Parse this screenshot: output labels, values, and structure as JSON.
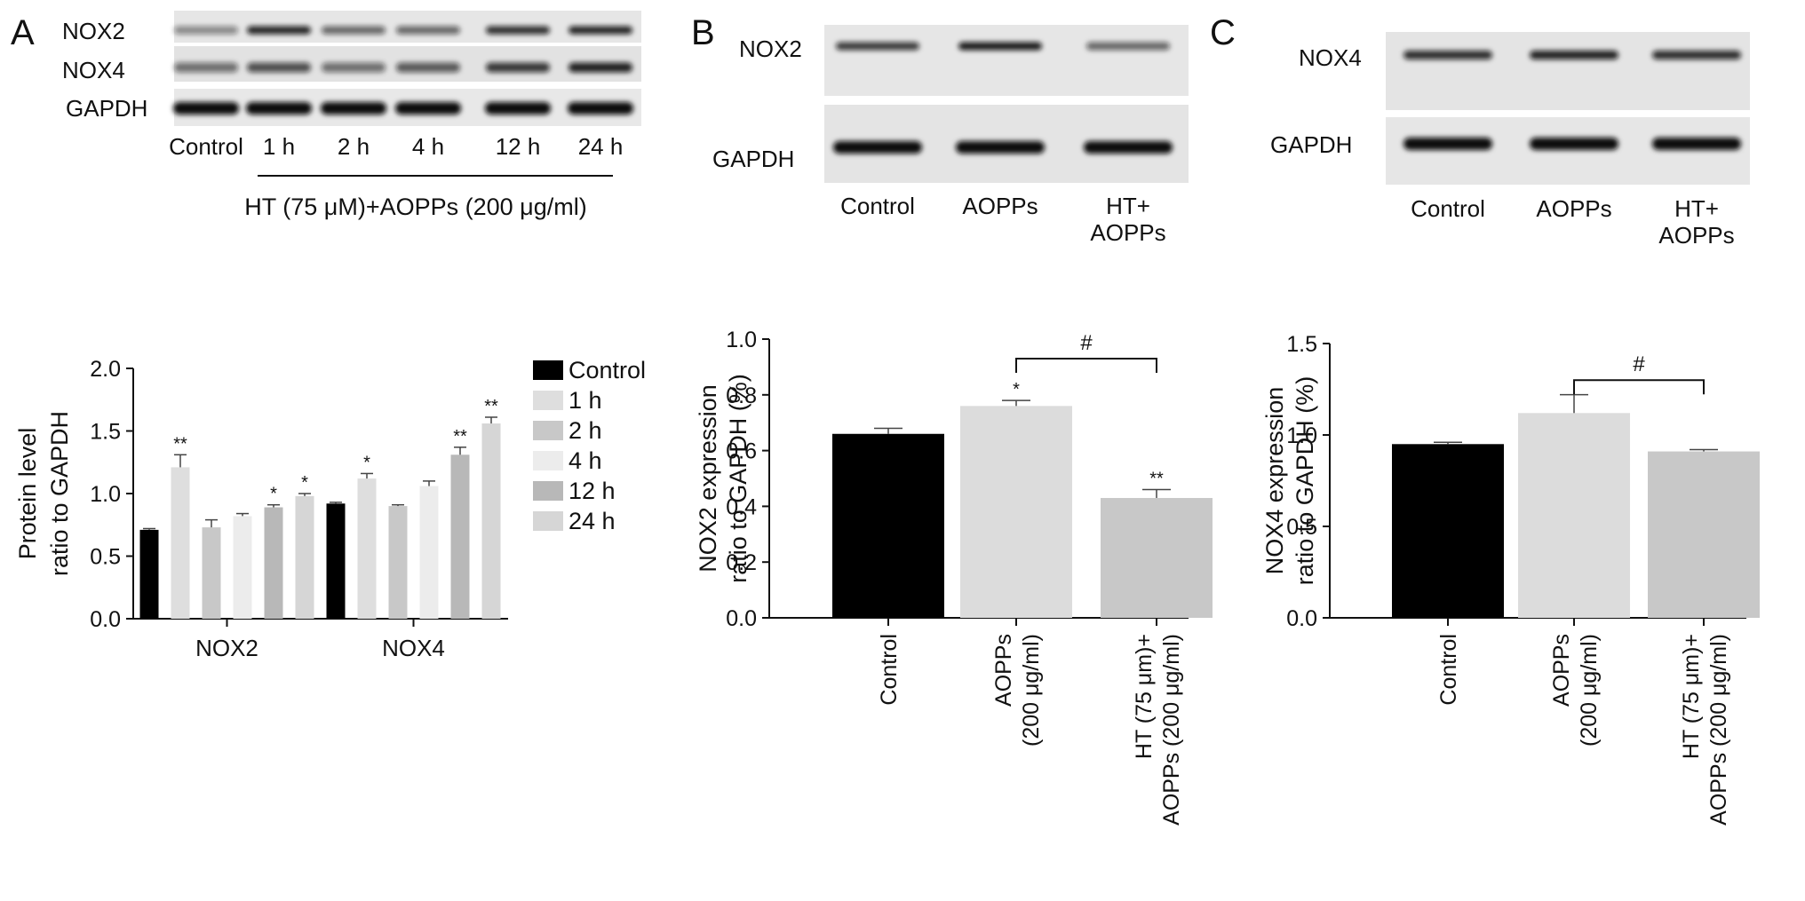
{
  "panels": {
    "A": {
      "letter": "A",
      "blot": {
        "bands": [
          "NOX2",
          "NOX4",
          "GAPDH"
        ],
        "lanes": [
          "Control",
          "1 h",
          "2 h",
          "4 h",
          "12 h",
          "24 h"
        ],
        "treatment": "HT (75 μM)+AOPPs (200 μg/ml)"
      }
    },
    "B": {
      "letter": "B",
      "blot": {
        "bands": [
          "NOX2",
          "GAPDH"
        ],
        "lanes": [
          "Control",
          "AOPPs",
          "HT+\nAOPPs"
        ]
      }
    },
    "C": {
      "letter": "C",
      "blot": {
        "bands": [
          "NOX4",
          "GAPDH"
        ],
        "lanes": [
          "Control",
          "AOPPs",
          "HT+\nAOPPs"
        ]
      }
    }
  },
  "chart_data": [
    {
      "type": "bar",
      "panel": "A",
      "ylabel": "Protein level\nratio to GAPDH",
      "ylim": [
        0,
        2.0
      ],
      "yticks": [
        "0.0",
        "0.5",
        "1.0",
        "1.5",
        "2.0"
      ],
      "categories": [
        "NOX2",
        "NOX4"
      ],
      "series": [
        {
          "name": "Control",
          "color": "#000000",
          "values": [
            0.71,
            0.92
          ],
          "errors": [
            0.01,
            0.01
          ],
          "sig": [
            "",
            ""
          ]
        },
        {
          "name": "1 h",
          "color": "#dedede",
          "values": [
            1.21,
            1.12
          ],
          "errors": [
            0.1,
            0.04
          ],
          "sig": [
            "**",
            "*"
          ]
        },
        {
          "name": "2 h",
          "color": "#c8c8c8",
          "values": [
            0.73,
            0.9
          ],
          "errors": [
            0.06,
            0.01
          ],
          "sig": [
            "",
            ""
          ]
        },
        {
          "name": "4 h",
          "color": "#ececec",
          "values": [
            0.82,
            1.06
          ],
          "errors": [
            0.02,
            0.04
          ],
          "sig": [
            "",
            ""
          ]
        },
        {
          "name": "12 h",
          "color": "#b8b8b8",
          "values": [
            0.89,
            1.31
          ],
          "errors": [
            0.02,
            0.06
          ],
          "sig": [
            "*",
            "**"
          ]
        },
        {
          "name": "24 h",
          "color": "#d6d6d6",
          "values": [
            0.98,
            1.56
          ],
          "errors": [
            0.02,
            0.05
          ],
          "sig": [
            "*",
            "**"
          ]
        }
      ],
      "legend": "right",
      "grid": false
    },
    {
      "type": "bar",
      "panel": "B",
      "ylabel": "NOX2 expression\nratio to GAPDH (%)",
      "ylim": [
        0,
        1.0
      ],
      "yticks": [
        "0.0",
        "0.2",
        "0.4",
        "0.6",
        "0.8",
        "1.0"
      ],
      "categories": [
        "Control",
        "AOPPs\n(200 μg/ml)",
        "HT (75 μm)+\nAOPPs (200 μg/ml)"
      ],
      "values": [
        0.66,
        0.76,
        0.43
      ],
      "errors": [
        0.02,
        0.02,
        0.03
      ],
      "colors": [
        "#000000",
        "#dcdcdc",
        "#c8c8c8"
      ],
      "sig": [
        "",
        "*",
        "**"
      ],
      "bracket": {
        "from": 1,
        "to": 2,
        "label": "#",
        "y": 0.93
      }
    },
    {
      "type": "bar",
      "panel": "C",
      "ylabel": "NOX4 expression\nratio to GAPDH (%)",
      "ylim": [
        0,
        1.5
      ],
      "yticks": [
        "0.0",
        "0.5",
        "1.0",
        "1.5"
      ],
      "categories": [
        "Control",
        "AOPPs\n(200 μg/ml)",
        "HT (75 μm)+\nAOPPs (200 μg/ml)"
      ],
      "values": [
        0.95,
        1.12,
        0.91
      ],
      "errors": [
        0.01,
        0.1,
        0.01
      ],
      "colors": [
        "#000000",
        "#dcdcdc",
        "#c8c8c8"
      ],
      "sig": [
        "",
        "",
        ""
      ],
      "bracket": {
        "from": 1,
        "to": 2,
        "label": "#",
        "y": 1.3
      }
    }
  ]
}
